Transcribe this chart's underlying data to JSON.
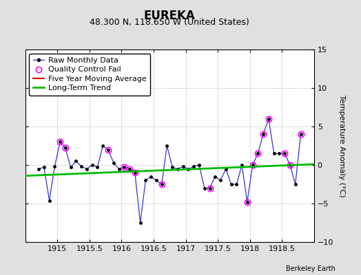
{
  "title": "EUREKA",
  "subtitle": "48.300 N, 118.650 W (United States)",
  "ylabel": "Temperature Anomaly (°C)",
  "watermark": "Berkeley Earth",
  "xlim": [
    1914.5,
    1919.0
  ],
  "ylim": [
    -10,
    15
  ],
  "yticks": [
    -10,
    -5,
    0,
    5,
    10,
    15
  ],
  "xticks": [
    1915,
    1915.5,
    1916,
    1916.5,
    1917,
    1917.5,
    1918,
    1918.5
  ],
  "background_color": "#e0e0e0",
  "plot_bg_color": "#ffffff",
  "raw_x": [
    1914.708,
    1914.792,
    1914.875,
    1914.958,
    1915.042,
    1915.125,
    1915.208,
    1915.292,
    1915.375,
    1915.458,
    1915.542,
    1915.625,
    1915.708,
    1915.792,
    1915.875,
    1915.958,
    1916.042,
    1916.125,
    1916.208,
    1916.292,
    1916.375,
    1916.458,
    1916.542,
    1916.625,
    1916.708,
    1916.792,
    1916.875,
    1916.958,
    1917.042,
    1917.125,
    1917.208,
    1917.292,
    1917.375,
    1917.458,
    1917.542,
    1917.625,
    1917.708,
    1917.792,
    1917.875,
    1917.958,
    1918.042,
    1918.125,
    1918.208,
    1918.292,
    1918.375,
    1918.458,
    1918.542,
    1918.625,
    1918.708,
    1918.792
  ],
  "raw_y": [
    -0.5,
    -0.3,
    -4.6,
    -0.2,
    3.0,
    2.2,
    -0.3,
    0.5,
    -0.2,
    -0.5,
    0.0,
    -0.3,
    2.5,
    2.0,
    0.3,
    -0.5,
    -0.3,
    -0.5,
    -1.0,
    -7.5,
    -2.0,
    -1.5,
    -2.0,
    -2.5,
    2.5,
    -0.3,
    -0.5,
    -0.2,
    -0.5,
    -0.2,
    0.0,
    -3.0,
    -3.0,
    -1.5,
    -2.0,
    -0.5,
    -2.5,
    -2.5,
    0.0,
    -4.8,
    0.0,
    1.5,
    4.0,
    6.0,
    1.5,
    1.5,
    1.5,
    0.0,
    -2.5,
    4.0
  ],
  "qc_fail_x": [
    1915.042,
    1915.125,
    1915.792,
    1916.042,
    1916.125,
    1916.208,
    1916.625,
    1917.375,
    1917.958,
    1918.042,
    1918.125,
    1918.208,
    1918.292,
    1918.542,
    1918.625,
    1918.792
  ],
  "qc_fail_y": [
    3.0,
    2.2,
    2.0,
    -0.3,
    -0.5,
    -1.0,
    -2.5,
    -3.0,
    -4.8,
    0.0,
    1.5,
    4.0,
    6.0,
    1.5,
    0.0,
    4.0
  ],
  "trend_x": [
    1914.5,
    1919.0
  ],
  "trend_y": [
    -1.4,
    0.1
  ],
  "raw_line_color": "#3333cc",
  "raw_marker_color": "#000000",
  "qc_color": "#ff00ff",
  "trend_color": "#00bb00",
  "moving_avg_color": "#dd0000",
  "title_fontsize": 12,
  "subtitle_fontsize": 9,
  "ylabel_fontsize": 8,
  "tick_fontsize": 8,
  "legend_fontsize": 8
}
